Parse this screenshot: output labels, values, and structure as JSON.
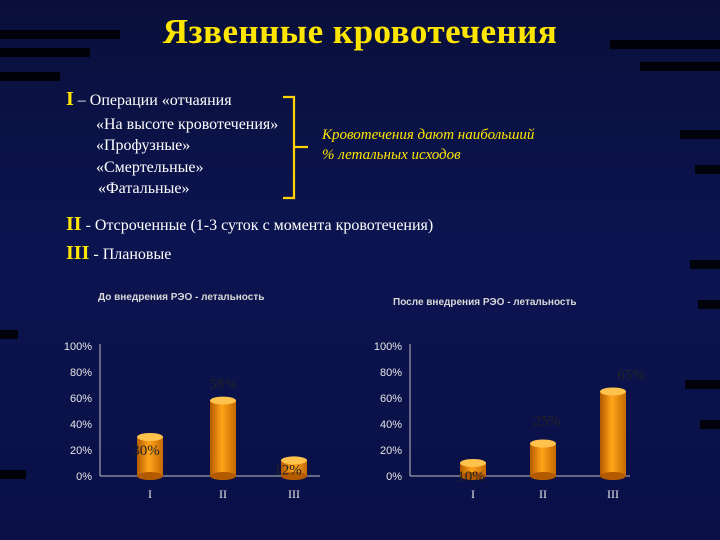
{
  "slide": {
    "title": "Язвенные кровотечения",
    "items": [
      {
        "roman": "I",
        "sep": " – ",
        "text": "Операции «отчаяния"
      },
      {
        "roman": "II",
        "sep": " - ",
        "text": "Отсроченные (1-3 суток с момента кровотечения)"
      },
      {
        "roman": "III",
        "sep": " - ",
        "text": "Плановые"
      }
    ],
    "sub_items": [
      "«На высоте кровотечения»",
      "«Профузные»",
      "«Смертельные»",
      "«Фатальные»"
    ],
    "note_line1": "Кровотечения дают наибольший",
    "note_line2": "% летальных исходов"
  },
  "colors": {
    "title": "#ffe600",
    "bracket": "#ffd400",
    "bar": "#ffa41a",
    "text": "#ffffff"
  },
  "chart_data": [
    {
      "type": "bar",
      "title": "До внедрения РЭО - летальность",
      "categories": [
        "I",
        "II",
        "III"
      ],
      "values": [
        30,
        58,
        12
      ],
      "value_labels": [
        "30%",
        "58%",
        "12%"
      ],
      "y_ticks": [
        "0%",
        "20%",
        "40%",
        "60%",
        "80%",
        "100%"
      ],
      "ylim": [
        0,
        100
      ],
      "grid": false
    },
    {
      "type": "bar",
      "title": "После внедрения РЭО - летальность",
      "categories": [
        "I",
        "II",
        "III"
      ],
      "values": [
        10,
        25,
        65
      ],
      "value_labels": [
        "10%",
        "25%",
        "65%"
      ],
      "y_ticks": [
        "0%",
        "20%",
        "40%",
        "60%",
        "80%",
        "100%"
      ],
      "ylim": [
        0,
        100
      ],
      "grid": false
    }
  ]
}
